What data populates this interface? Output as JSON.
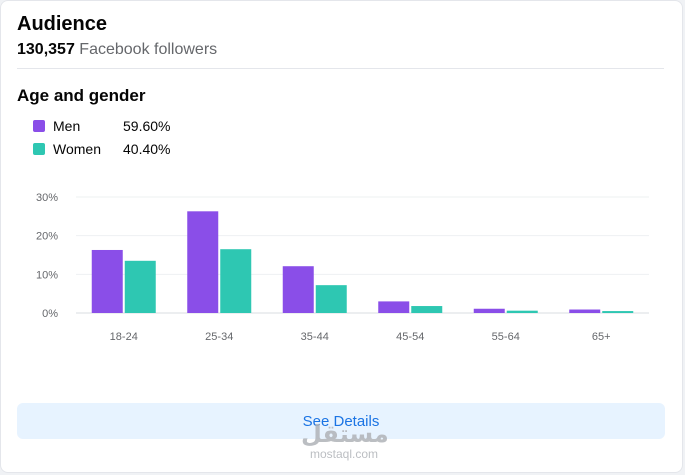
{
  "header": {
    "title": "Audience",
    "follower_count": "130,357",
    "follower_label": "Facebook followers"
  },
  "section": {
    "title": "Age and gender"
  },
  "legend": [
    {
      "label": "Men",
      "value": "59.60%",
      "color": "#8a4ee8"
    },
    {
      "label": "Women",
      "value": "40.40%",
      "color": "#2ec7b2"
    }
  ],
  "chart_data": {
    "type": "bar",
    "categories": [
      "18-24",
      "25-34",
      "35-44",
      "45-54",
      "55-64",
      "65+"
    ],
    "series": [
      {
        "name": "Men",
        "values": [
          16.3,
          26.3,
          12.1,
          3.0,
          1.1,
          0.9
        ],
        "color": "#8a4ee8"
      },
      {
        "name": "Women",
        "values": [
          13.5,
          16.5,
          7.2,
          1.8,
          0.6,
          0.5
        ],
        "color": "#2ec7b2"
      }
    ],
    "yticks": [
      "0%",
      "10%",
      "20%",
      "30%"
    ],
    "ylim": [
      0,
      30
    ],
    "grid": true
  },
  "footer": {
    "button_label": "See Details"
  },
  "watermark": {
    "arabic": "مستقل",
    "latin": "mostaql.com"
  }
}
